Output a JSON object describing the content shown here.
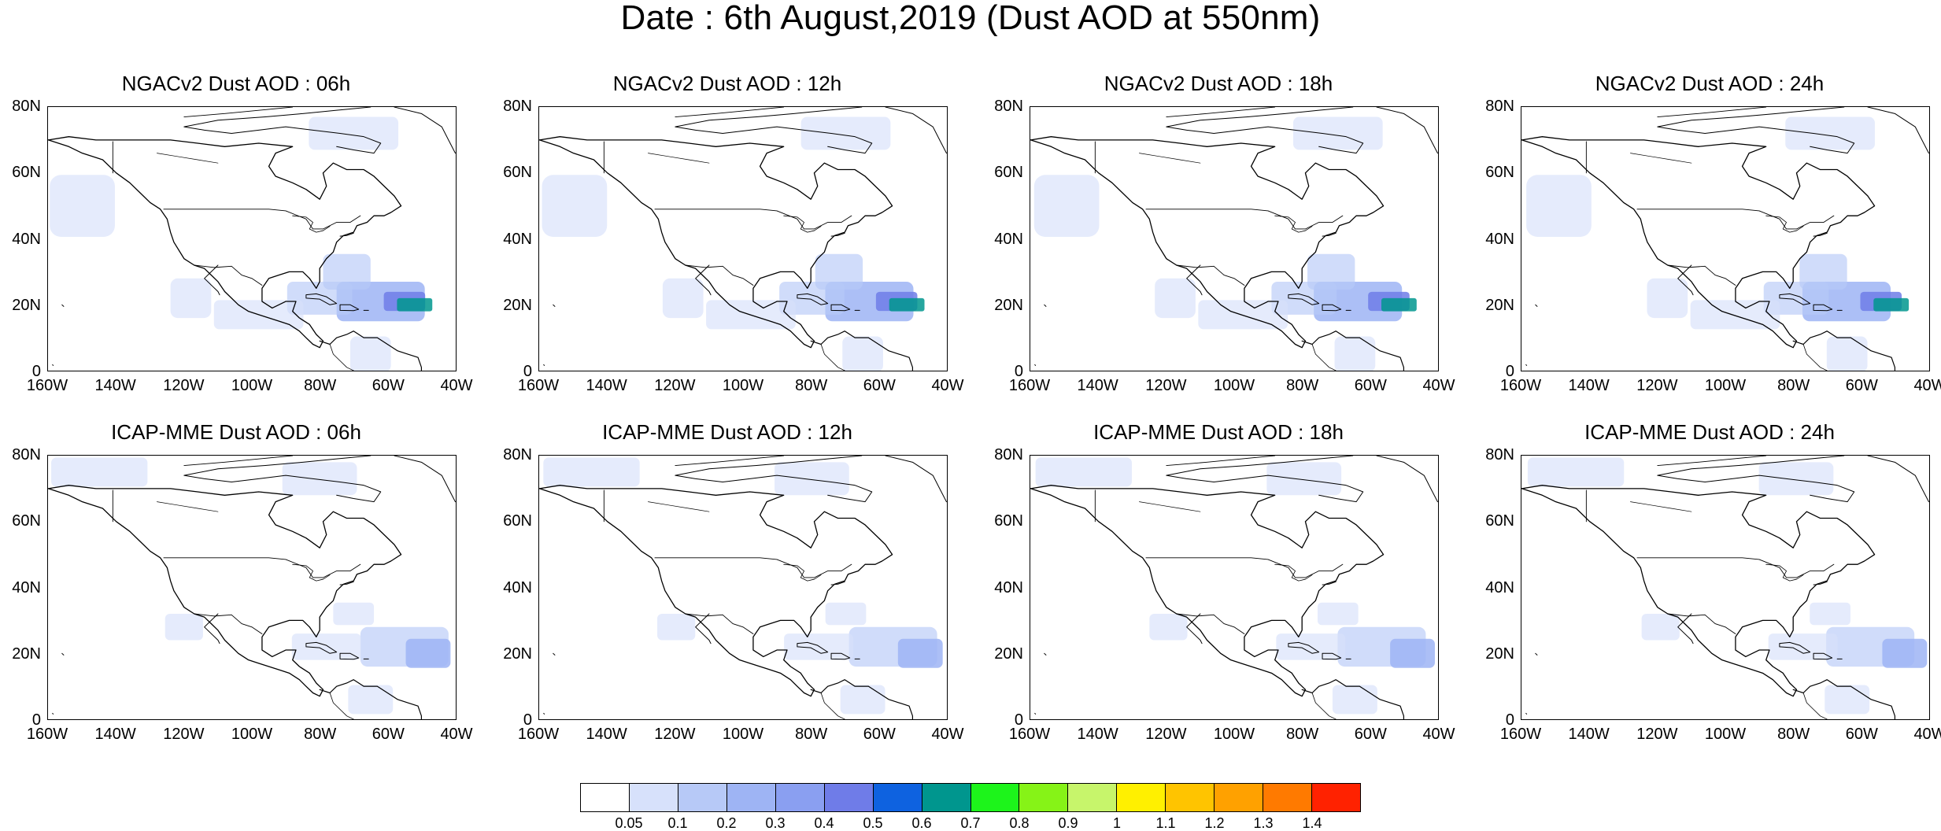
{
  "title": "Date : 6th August,2019 (Dust AOD at 550nm)",
  "axes": {
    "y_ticks": [
      "80N",
      "60N",
      "40N",
      "20N",
      "0"
    ],
    "x_ticks": [
      "160W",
      "140W",
      "120W",
      "100W",
      "80W",
      "60W",
      "40W"
    ],
    "lon_range": [
      -160,
      -40
    ],
    "lat_range": [
      0,
      80
    ]
  },
  "panels": [
    {
      "title": "NGACv2 Dust AOD : 06h",
      "model": "ngac",
      "hour": 6
    },
    {
      "title": "NGACv2 Dust AOD : 12h",
      "model": "ngac",
      "hour": 12
    },
    {
      "title": "NGACv2 Dust AOD : 18h",
      "model": "ngac",
      "hour": 18
    },
    {
      "title": "NGACv2 Dust AOD : 24h",
      "model": "ngac",
      "hour": 24
    },
    {
      "title": "ICAP-MME Dust AOD : 06h",
      "model": "icap",
      "hour": 6
    },
    {
      "title": "ICAP-MME Dust AOD : 12h",
      "model": "icap",
      "hour": 12
    },
    {
      "title": "ICAP-MME Dust AOD : 18h",
      "model": "icap",
      "hour": 18
    },
    {
      "title": "ICAP-MME Dust AOD : 24h",
      "model": "icap",
      "hour": 24
    }
  ],
  "colorbar": {
    "labels": [
      "0.05",
      "0.1",
      "0.2",
      "0.3",
      "0.4",
      "0.5",
      "0.6",
      "0.7",
      "0.8",
      "0.9",
      "1",
      "1.1",
      "1.2",
      "1.3",
      "1.4"
    ],
    "colors": [
      "#ffffff",
      "#d7e1fb",
      "#b7c9f7",
      "#9eb4f4",
      "#8a9ff1",
      "#6f7ce8",
      "#0e62e0",
      "#00968e",
      "#1df41b",
      "#86f317",
      "#c7f56b",
      "#fff000",
      "#ffc400",
      "#ffa100",
      "#ff7a00",
      "#ff2200"
    ]
  },
  "map_fields": {
    "ngac": [
      {
        "lon": -62,
        "lat": 21,
        "w": 26,
        "h": 12,
        "level": 3
      },
      {
        "lon": -55,
        "lat": 21,
        "w": 11,
        "h": 5,
        "level": 5
      },
      {
        "lon": -52,
        "lat": 20,
        "w": 8,
        "h": 4,
        "level": 7
      },
      {
        "lon": -72,
        "lat": 30,
        "w": 14,
        "h": 10,
        "level": 2
      },
      {
        "lon": -80,
        "lat": 22,
        "w": 18,
        "h": 10,
        "level": 2
      },
      {
        "lon": -98,
        "lat": 17,
        "w": 24,
        "h": 8,
        "level": 1
      },
      {
        "lon": -118,
        "lat": 22,
        "w": 12,
        "h": 12,
        "level": 1
      },
      {
        "lon": -150,
        "lat": 50,
        "w": 18,
        "h": 18,
        "level": 1
      },
      {
        "lon": -70,
        "lat": 72,
        "w": 24,
        "h": 10,
        "level": 1
      },
      {
        "lon": -65,
        "lat": 5,
        "w": 12,
        "h": 10,
        "level": 1
      }
    ],
    "icap": [
      {
        "lon": -55,
        "lat": 22,
        "w": 26,
        "h": 12,
        "level": 2
      },
      {
        "lon": -48,
        "lat": 20,
        "w": 12,
        "h": 8,
        "level": 3
      },
      {
        "lon": -78,
        "lat": 22,
        "w": 18,
        "h": 8,
        "level": 1
      },
      {
        "lon": -70,
        "lat": 32,
        "w": 12,
        "h": 6,
        "level": 1
      },
      {
        "lon": -120,
        "lat": 28,
        "w": 10,
        "h": 8,
        "level": 1
      },
      {
        "lon": -145,
        "lat": 75,
        "w": 26,
        "h": 8,
        "level": 1
      },
      {
        "lon": -80,
        "lat": 73,
        "w": 22,
        "h": 10,
        "level": 1
      },
      {
        "lon": -65,
        "lat": 6,
        "w": 12,
        "h": 8,
        "level": 1
      }
    ]
  }
}
